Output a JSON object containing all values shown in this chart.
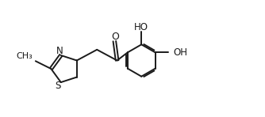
{
  "background_color": "#ffffff",
  "line_color": "#1a1a1a",
  "line_width": 1.4,
  "font_size": 8.5,
  "fig_width": 3.34,
  "fig_height": 1.48,
  "dpi": 100,
  "xlim": [
    0,
    10
  ],
  "ylim": [
    0,
    4.5
  ]
}
